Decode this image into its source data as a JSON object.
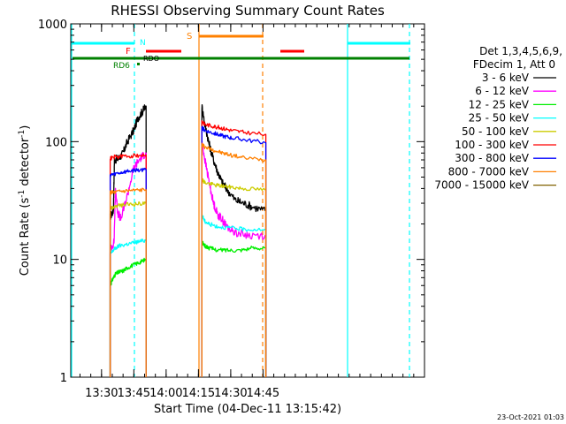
{
  "chart_data": {
    "type": "line",
    "title": "RHESSI Observing Summary Count Rates",
    "xlabel": "Start Time (04-Dec-11 13:15:42)",
    "ylabel_main": "Count Rate (s",
    "ylabel_sup1": "-1",
    "ylabel_mid": " detector",
    "ylabel_sup2": "-1",
    "ylabel_end": ")",
    "y_scale": "log",
    "ylim": [
      1,
      1000
    ],
    "xlim_min": [
      795.7,
      960
    ],
    "y_ticks": [
      {
        "v": 1,
        "label": "1"
      },
      {
        "v": 10,
        "label": "10"
      },
      {
        "v": 100,
        "label": "100"
      },
      {
        "v": 1000,
        "label": "1000"
      }
    ],
    "x_ticks": [
      {
        "m": 810,
        "label": "13:30"
      },
      {
        "m": 825,
        "label": "13:45"
      },
      {
        "m": 840,
        "label": "14:00"
      },
      {
        "m": 855,
        "label": "14:15"
      },
      {
        "m": 870,
        "label": "14:30"
      },
      {
        "m": 885,
        "label": "14:45"
      }
    ],
    "legend": {
      "header1": "Det 1,3,4,5,6,9,",
      "header2": "FDecim 1, Att 0",
      "placement": "right",
      "entries": [
        {
          "label": "3 - 6 keV",
          "color": "#000000"
        },
        {
          "label": "6 - 12 keV",
          "color": "#ff00ff"
        },
        {
          "label": "12 - 25 keV",
          "color": "#00ee00"
        },
        {
          "label": "25 - 50 keV",
          "color": "#00ffff"
        },
        {
          "label": "50 - 100 keV",
          "color": "#cccc00"
        },
        {
          "label": "100 - 300 keV",
          "color": "#ff0000"
        },
        {
          "label": "300 - 800 keV",
          "color": "#0000ff"
        },
        {
          "label": "800 - 7000 keV",
          "color": "#ff8000"
        },
        {
          "label": "7000 - 15000 keV",
          "color": "#806000"
        }
      ]
    },
    "flags": [
      {
        "label": "N",
        "color": "#00ffff"
      },
      {
        "label": "F",
        "color": "#ff0000"
      },
      {
        "label": "S",
        "color": "#ff8000"
      },
      {
        "label": "RDO",
        "color": "#000000"
      },
      {
        "label": "RD6",
        "color": "#008000"
      }
    ],
    "segments": [
      {
        "x_range": [
          814.0,
          830.7
        ],
        "series": [
          {
            "name": "3 - 6 keV",
            "color": "#000000",
            "points": [
              [
                814.0,
                23
              ],
              [
                815.5,
                26
              ],
              [
                816.0,
                70
              ],
              [
                818.0,
                72
              ],
              [
                820.0,
                80
              ],
              [
                822.0,
                100
              ],
              [
                825.0,
                125
              ],
              [
                827.0,
                160
              ],
              [
                829.0,
                180
              ],
              [
                830.5,
                200
              ]
            ]
          },
          {
            "name": "6 - 12 keV",
            "color": "#ff00ff",
            "points": [
              [
                814.0,
                12
              ],
              [
                815.8,
                14
              ],
              [
                816.5,
                40
              ],
              [
                817.5,
                25
              ],
              [
                819.0,
                22
              ],
              [
                822.0,
                35
              ],
              [
                825.0,
                60
              ],
              [
                828.0,
                72
              ],
              [
                830.5,
                80
              ]
            ]
          },
          {
            "name": "12 - 25 keV",
            "color": "#00ee00",
            "points": [
              [
                814.0,
                6
              ],
              [
                815.5,
                7
              ],
              [
                816.5,
                7.5
              ],
              [
                818.0,
                7.8
              ],
              [
                820.0,
                8
              ],
              [
                822.0,
                8.5
              ],
              [
                825.0,
                9
              ],
              [
                828.0,
                9.5
              ],
              [
                830.5,
                10
              ]
            ]
          },
          {
            "name": "25 - 50 keV",
            "color": "#00ffff",
            "points": [
              [
                814.0,
                11
              ],
              [
                815.5,
                12
              ],
              [
                818.0,
                13
              ],
              [
                822.0,
                13.5
              ],
              [
                826.0,
                14
              ],
              [
                830.5,
                14.5
              ]
            ]
          },
          {
            "name": "50 - 100 keV",
            "color": "#cccc00",
            "points": [
              [
                814.0,
                27
              ],
              [
                816.0,
                28
              ],
              [
                820.0,
                29
              ],
              [
                825.0,
                29.5
              ],
              [
                830.5,
                30
              ]
            ]
          },
          {
            "name": "100 - 300 keV",
            "color": "#ff0000",
            "points": [
              [
                814.0,
                72
              ],
              [
                816.0,
                74
              ],
              [
                820.0,
                75
              ],
              [
                825.0,
                76
              ],
              [
                830.5,
                77
              ]
            ]
          },
          {
            "name": "300 - 800 keV",
            "color": "#0000ff",
            "points": [
              [
                814.0,
                52
              ],
              [
                816.0,
                53
              ],
              [
                820.0,
                55
              ],
              [
                825.0,
                57
              ],
              [
                830.5,
                58
              ]
            ]
          },
          {
            "name": "800 - 7000 keV",
            "color": "#ff8000",
            "points": [
              [
                814.0,
                37
              ],
              [
                816.0,
                37
              ],
              [
                820.0,
                38
              ],
              [
                825.0,
                38.5
              ],
              [
                830.5,
                39
              ]
            ]
          }
        ]
      },
      {
        "x_range": [
          856.6,
          886.3
        ],
        "series": [
          {
            "name": "3 - 6 keV",
            "color": "#000000",
            "points": [
              [
                856.6,
                200
              ],
              [
                858.0,
                140
              ],
              [
                860.0,
                95
              ],
              [
                862.0,
                70
              ],
              [
                864.0,
                55
              ],
              [
                866.0,
                45
              ],
              [
                868.0,
                40
              ],
              [
                872.0,
                32
              ],
              [
                876.0,
                30
              ],
              [
                880.0,
                28
              ],
              [
                886.0,
                26
              ]
            ]
          },
          {
            "name": "6 - 12 keV",
            "color": "#ff00ff",
            "points": [
              [
                856.6,
                100
              ],
              [
                858.0,
                70
              ],
              [
                860.0,
                45
              ],
              [
                862.0,
                30
              ],
              [
                864.0,
                24
              ],
              [
                866.0,
                22
              ],
              [
                868.0,
                19
              ],
              [
                872.0,
                17
              ],
              [
                878.0,
                16
              ],
              [
                886.0,
                16
              ]
            ]
          },
          {
            "name": "12 - 25 keV",
            "color": "#00ee00",
            "points": [
              [
                856.6,
                14
              ],
              [
                858.0,
                13
              ],
              [
                860.0,
                12.5
              ],
              [
                864.0,
                12
              ],
              [
                868.0,
                12
              ],
              [
                874.0,
                12
              ],
              [
                880.0,
                12.5
              ],
              [
                886.0,
                12.5
              ]
            ]
          },
          {
            "name": "25 - 50 keV",
            "color": "#00ffff",
            "points": [
              [
                856.6,
                24
              ],
              [
                858.0,
                21
              ],
              [
                860.0,
                20
              ],
              [
                864.0,
                19
              ],
              [
                870.0,
                18.5
              ],
              [
                876.0,
                18
              ],
              [
                886.0,
                18
              ]
            ]
          },
          {
            "name": "50 - 100 keV",
            "color": "#cccc00",
            "points": [
              [
                856.6,
                48
              ],
              [
                858.0,
                45
              ],
              [
                862.0,
                43
              ],
              [
                866.0,
                42
              ],
              [
                870.0,
                41
              ],
              [
                876.0,
                40
              ],
              [
                886.0,
                39
              ]
            ]
          },
          {
            "name": "100 - 300 keV",
            "color": "#ff0000",
            "points": [
              [
                856.6,
                150
              ],
              [
                858.0,
                140
              ],
              [
                862.0,
                135
              ],
              [
                866.0,
                130
              ],
              [
                870.0,
                125
              ],
              [
                876.0,
                120
              ],
              [
                886.0,
                115
              ]
            ]
          },
          {
            "name": "300 - 800 keV",
            "color": "#0000ff",
            "points": [
              [
                856.6,
                130
              ],
              [
                858.0,
                125
              ],
              [
                862.0,
                118
              ],
              [
                866.0,
                112
              ],
              [
                870.0,
                108
              ],
              [
                876.0,
                104
              ],
              [
                886.0,
                98
              ]
            ]
          },
          {
            "name": "800 - 7000 keV",
            "color": "#ff8000",
            "points": [
              [
                856.6,
                95
              ],
              [
                858.0,
                90
              ],
              [
                862.0,
                85
              ],
              [
                866.0,
                80
              ],
              [
                870.0,
                77
              ],
              [
                876.0,
                73
              ],
              [
                886.0,
                70
              ]
            ]
          }
        ]
      }
    ],
    "timestamp": "23-Oct-2021 01:03"
  }
}
